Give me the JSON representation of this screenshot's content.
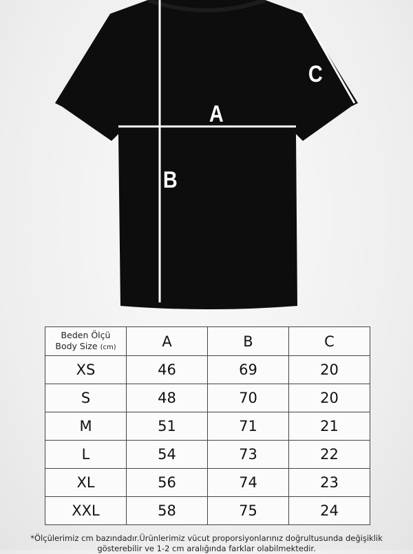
{
  "diagram": {
    "labels": {
      "a": "A",
      "b": "B",
      "c": "C"
    },
    "shirt_color": "#0d0d0d",
    "line_color": "#ffffff"
  },
  "table": {
    "header": {
      "line1": "Beden Ölçü",
      "line2": "Body Size",
      "unit": "(cm)",
      "columns": [
        "A",
        "B",
        "C"
      ]
    },
    "rows": [
      {
        "size": "XS",
        "a": "46",
        "b": "69",
        "c": "20"
      },
      {
        "size": "S",
        "a": "48",
        "b": "70",
        "c": "20"
      },
      {
        "size": "M",
        "a": "51",
        "b": "71",
        "c": "21"
      },
      {
        "size": "L",
        "a": "54",
        "b": "73",
        "c": "22"
      },
      {
        "size": "XL",
        "a": "56",
        "b": "74",
        "c": "23"
      },
      {
        "size": "XXL",
        "a": "58",
        "b": "75",
        "c": "24"
      }
    ]
  },
  "note": {
    "line1": "*Ölçülerimiz cm bazındadır.Ürünlerimiz vücut proporsiyonlarınız doğrultusunda değişiklik",
    "line2": "gösterebilir ve 1-2 cm aralığında farklar olabilmektedir."
  }
}
